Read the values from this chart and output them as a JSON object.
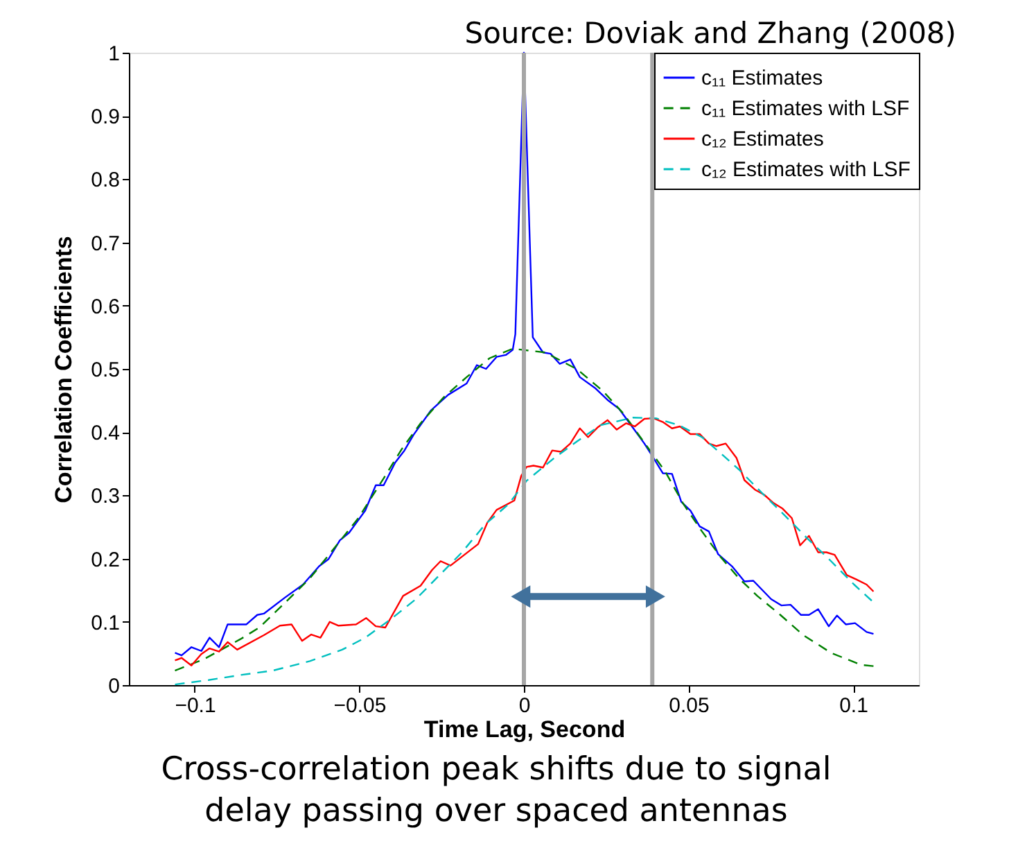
{
  "chart_data": {
    "type": "line",
    "xlabel": "Time Lag, Second",
    "ylabel": "Correlation Coefficients",
    "annotations": [
      "Source: Doviak and Zhang (2008)",
      "Cross-correlation peak shifts due  to signal\ndelay passing over spaced antennas"
    ],
    "xlim": [
      -0.12,
      0.12
    ],
    "ylim": [
      0,
      1
    ],
    "xticks": [
      {
        "value": -0.1,
        "label": "−0.1"
      },
      {
        "value": -0.05,
        "label": "−0.05"
      },
      0,
      0.05,
      0.1
    ],
    "yticks": [
      0,
      0.1,
      0.2,
      0.3,
      0.4,
      0.5,
      0.6,
      0.7,
      0.8,
      0.9,
      1
    ],
    "grid": false,
    "legend": "top right",
    "marker": "none",
    "series": [
      {
        "name": "c₁₁ Estimates",
        "color": "#0000ff",
        "line_style": "solid",
        "x": [
          -0.106,
          -0.104,
          -0.101,
          -0.098,
          -0.0955,
          -0.0926,
          -0.09,
          -0.0843,
          -0.081,
          -0.079,
          -0.0727,
          -0.0671,
          -0.0622,
          -0.0594,
          -0.0559,
          -0.0531,
          -0.0482,
          -0.045,
          -0.0426,
          -0.0391,
          -0.0363,
          -0.0335,
          -0.0283,
          -0.023,
          -0.0174,
          -0.0143,
          -0.0115,
          -0.0083,
          -0.0055,
          -0.0034,
          -0.0026,
          0,
          0.0027,
          0.0058,
          0.0081,
          0.0109,
          0.0141,
          0.017,
          0.0218,
          0.0254,
          0.0289,
          0.0331,
          0.0366,
          0.0394,
          0.0422,
          0.045,
          0.0478,
          0.0506,
          0.0534,
          0.0562,
          0.059,
          0.0632,
          0.067,
          0.0697,
          0.0751,
          0.0782,
          0.081,
          0.0842,
          0.0866,
          0.0894,
          0.0926,
          0.0951,
          0.0978,
          0.1006,
          0.1041,
          0.1062
        ],
        "values": [
          0.051,
          0.047,
          0.06,
          0.054,
          0.075,
          0.06,
          0.096,
          0.096,
          0.111,
          0.113,
          0.138,
          0.159,
          0.188,
          0.199,
          0.229,
          0.241,
          0.276,
          0.316,
          0.316,
          0.352,
          0.371,
          0.396,
          0.434,
          0.459,
          0.477,
          0.506,
          0.5,
          0.519,
          0.522,
          0.53,
          0.555,
          1,
          0.55,
          0.526,
          0.524,
          0.508,
          0.515,
          0.487,
          0.469,
          0.451,
          0.437,
          0.407,
          0.382,
          0.359,
          0.335,
          0.334,
          0.29,
          0.276,
          0.251,
          0.243,
          0.207,
          0.188,
          0.164,
          0.165,
          0.136,
          0.126,
          0.127,
          0.111,
          0.111,
          0.12,
          0.093,
          0.11,
          0.096,
          0.098,
          0.084,
          0.081
        ]
      },
      {
        "name": "c₁₁ Estimates with LSF",
        "color": "#008000",
        "line_style": "dashed",
        "x": [
          -0.106,
          -0.0972,
          -0.086,
          -0.0804,
          -0.072,
          -0.065,
          -0.058,
          -0.0503,
          -0.0426,
          -0.037,
          -0.0314,
          -0.0244,
          -0.0174,
          -0.0104,
          -0.0034,
          0.0065,
          0.0163,
          0.024,
          0.0303,
          0.0358,
          0.0429,
          0.0485,
          0.0541,
          0.0597,
          0.0653,
          0.0709,
          0.0779,
          0.0849,
          0.0933,
          0.1024,
          0.1062
        ],
        "values": [
          0.023,
          0.041,
          0.073,
          0.091,
          0.133,
          0.169,
          0.214,
          0.264,
          0.327,
          0.374,
          0.414,
          0.455,
          0.487,
          0.517,
          0.532,
          0.526,
          0.499,
          0.465,
          0.429,
          0.389,
          0.338,
          0.286,
          0.243,
          0.203,
          0.169,
          0.141,
          0.111,
          0.079,
          0.051,
          0.032,
          0.03
        ]
      },
      {
        "name": "c₁₂ Estimates",
        "color": "#ff0000",
        "line_style": "solid",
        "x": [
          -0.106,
          -0.104,
          -0.101,
          -0.098,
          -0.0955,
          -0.0926,
          -0.09,
          -0.0871,
          -0.079,
          -0.0741,
          -0.0706,
          -0.0674,
          -0.0646,
          -0.0618,
          -0.059,
          -0.0563,
          -0.051,
          -0.0479,
          -0.045,
          -0.0421,
          -0.0367,
          -0.0314,
          -0.0279,
          -0.0253,
          -0.0223,
          -0.0139,
          -0.0111,
          -0.0083,
          -0.0029,
          -0.0008,
          0.0008,
          0.0029,
          0.0058,
          0.0086,
          0.0113,
          0.0141,
          0.017,
          0.0195,
          0.0223,
          0.0254,
          0.0282,
          0.031,
          0.0337,
          0.0366,
          0.0394,
          0.0422,
          0.045,
          0.0474,
          0.0506,
          0.0534,
          0.0562,
          0.0585,
          0.0613,
          0.0646,
          0.067,
          0.0702,
          0.073,
          0.0758,
          0.0786,
          0.0814,
          0.0839,
          0.0866,
          0.0894,
          0.0919,
          0.0944,
          0.0981,
          0.101,
          0.1041,
          0.1062
        ],
        "values": [
          0.039,
          0.043,
          0.031,
          0.049,
          0.058,
          0.053,
          0.068,
          0.056,
          0.079,
          0.094,
          0.096,
          0.07,
          0.08,
          0.075,
          0.1,
          0.094,
          0.096,
          0.106,
          0.093,
          0.091,
          0.141,
          0.157,
          0.182,
          0.196,
          0.189,
          0.223,
          0.257,
          0.277,
          0.292,
          0.331,
          0.345,
          0.347,
          0.344,
          0.371,
          0.369,
          0.382,
          0.406,
          0.392,
          0.407,
          0.419,
          0.404,
          0.414,
          0.409,
          0.421,
          0.422,
          0.416,
          0.406,
          0.409,
          0.397,
          0.397,
          0.382,
          0.378,
          0.382,
          0.359,
          0.324,
          0.309,
          0.301,
          0.288,
          0.279,
          0.264,
          0.221,
          0.236,
          0.21,
          0.21,
          0.206,
          0.174,
          0.167,
          0.159,
          0.148
        ]
      },
      {
        "name": "c₁₂ Estimates with LSF",
        "color": "#00bfbf",
        "line_style": "dashed",
        "x": [
          -0.106,
          -0.0958,
          -0.086,
          -0.0762,
          -0.065,
          -0.0552,
          -0.0482,
          -0.0405,
          -0.0328,
          -0.0258,
          -0.0188,
          -0.0118,
          -0.0047,
          0.0008,
          0.0092,
          0.0163,
          0.0233,
          0.0331,
          0.0401,
          0.0471,
          0.0541,
          0.0597,
          0.0653,
          0.0723,
          0.0793,
          0.0863,
          0.0933,
          0.1003,
          0.1062
        ],
        "values": [
          0.001,
          0.008,
          0.016,
          0.023,
          0.038,
          0.056,
          0.075,
          0.104,
          0.136,
          0.173,
          0.21,
          0.254,
          0.286,
          0.323,
          0.359,
          0.386,
          0.411,
          0.423,
          0.422,
          0.411,
          0.392,
          0.367,
          0.341,
          0.304,
          0.268,
          0.231,
          0.196,
          0.159,
          0.131
        ]
      }
    ],
    "ref_lines": [
      {
        "axis": "x",
        "value": 0,
        "color": "#a6a6a6",
        "line_style": "solid"
      },
      {
        "axis": "x",
        "value": 0.039,
        "color": "#a6a6a6",
        "line_style": "solid"
      }
    ]
  }
}
